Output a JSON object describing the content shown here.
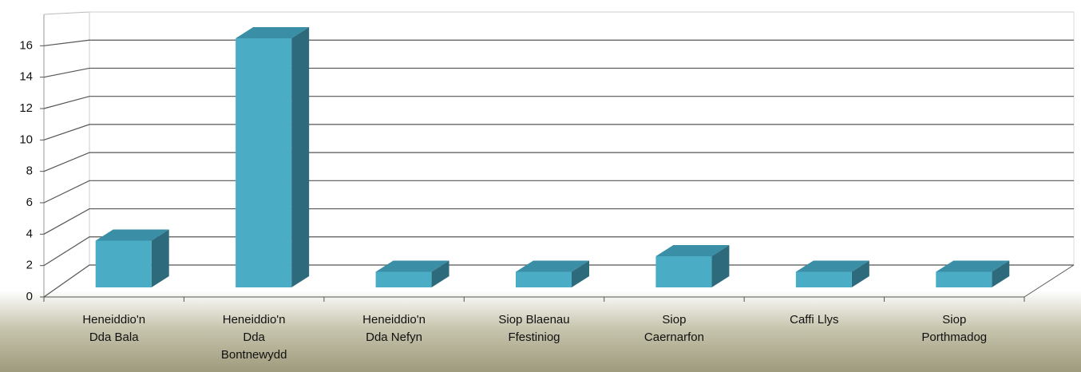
{
  "chart_data": {
    "type": "bar3d",
    "categories": [
      "Heneiddio'n\nDda Bala",
      "Heneiddio'n\nDda\nBontnewydd",
      "Heneiddio'n\nDda Nefyn",
      "Siop Blaenau\nFfestiniog",
      "Siop\nCaernarfon",
      "Caffi Llys",
      "Siop\nPorthmadog"
    ],
    "values": [
      3,
      16,
      1,
      1,
      2,
      1,
      1
    ],
    "color": "#4bacc6",
    "ylim": [
      0,
      18
    ],
    "yticks": [
      0,
      2,
      4,
      6,
      8,
      10,
      12,
      14,
      16
    ],
    "grid": true
  }
}
